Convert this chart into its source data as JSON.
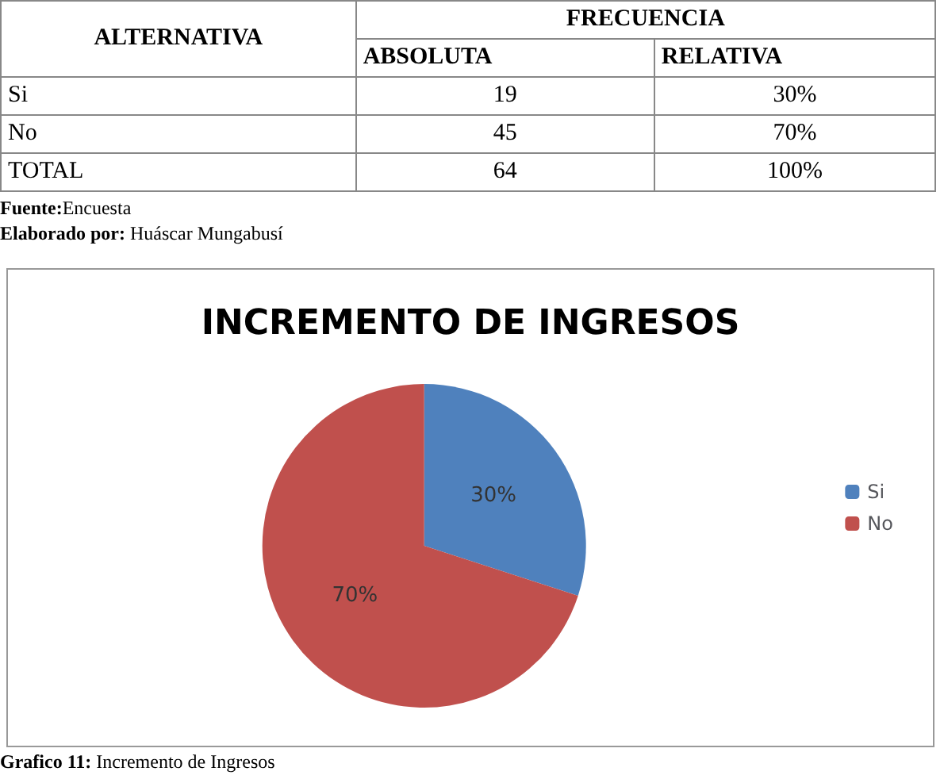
{
  "chart_data": [
    {
      "type": "other",
      "annotations": [
        "FRECUENCIA",
        "ALTERNATIVA",
        "ABSOLUTA",
        "RELATIVA",
        "Si",
        "19",
        "30%",
        "No",
        "45",
        "70%",
        "TOTAL",
        "64",
        "100%",
        "Fuente:Encuesta",
        "Elaborado por: Huáscar Mungabusí"
      ]
    },
    {
      "type": "pie",
      "title": "INCREMENTO DE INGRESOS",
      "categories": [
        "Si",
        "No"
      ],
      "values": [
        30,
        70
      ],
      "value_labels": [
        "30%",
        "70%"
      ],
      "colors": [
        "#4f81bd",
        "#c0504d"
      ],
      "legend": "right",
      "annotations": [
        "Grafico 11: Incremento de Ingresos"
      ]
    }
  ]
}
